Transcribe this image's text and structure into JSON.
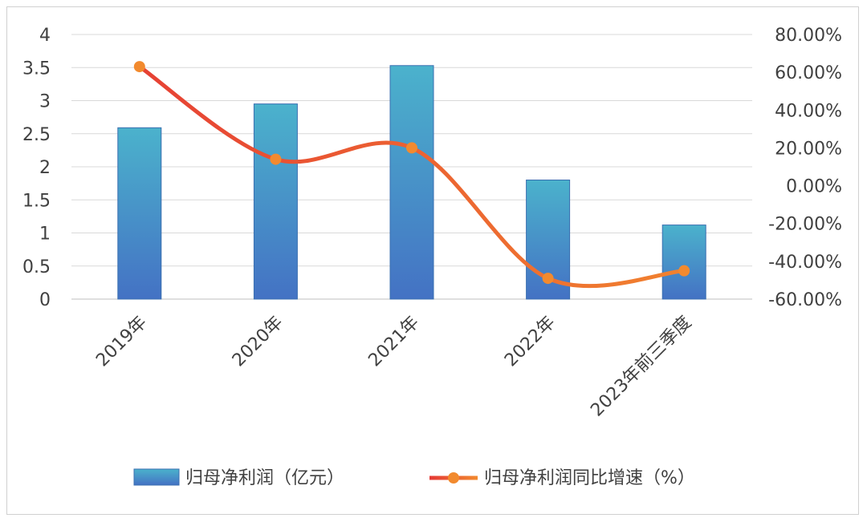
{
  "chart_data": {
    "type": "bar",
    "title": "",
    "categories": [
      "2019年",
      "2020年",
      "2021年",
      "2022年",
      "2023年前三季度"
    ],
    "series": [
      {
        "name": "归母净利润（亿元）",
        "type": "bar",
        "axis": "left",
        "values": [
          2.59,
          2.95,
          3.53,
          1.8,
          1.12
        ],
        "color_top": "#4bb2cc",
        "color_bottom": "#4472c4"
      },
      {
        "name": "归母净利润同比增速（%）",
        "type": "line",
        "axis": "right",
        "smooth": true,
        "values": [
          0.63,
          0.14,
          0.2,
          -0.49,
          -0.45
        ],
        "color_line_start": "#e53935",
        "color_line_end": "#f28a2e",
        "marker_color": "#f28a2e"
      }
    ],
    "y_left": {
      "ylim": [
        0,
        4
      ],
      "ticks": [
        0,
        0.5,
        1,
        1.5,
        2,
        2.5,
        3,
        3.5,
        4
      ],
      "tick_labels": [
        "0",
        "0.5",
        "1",
        "1.5",
        "2",
        "2.5",
        "3",
        "3.5",
        "4"
      ]
    },
    "y_right": {
      "ylim": [
        -0.6,
        0.8
      ],
      "ticks": [
        -0.6,
        -0.4,
        -0.2,
        0,
        0.2,
        0.4,
        0.6,
        0.8
      ],
      "tick_labels": [
        "-60.00%",
        "-40.00%",
        "-20.00%",
        "0.00%",
        "20.00%",
        "40.00%",
        "60.00%",
        "80.00%"
      ]
    },
    "grid": true,
    "legend_position": "bottom",
    "x_labels_rotation": -45
  }
}
